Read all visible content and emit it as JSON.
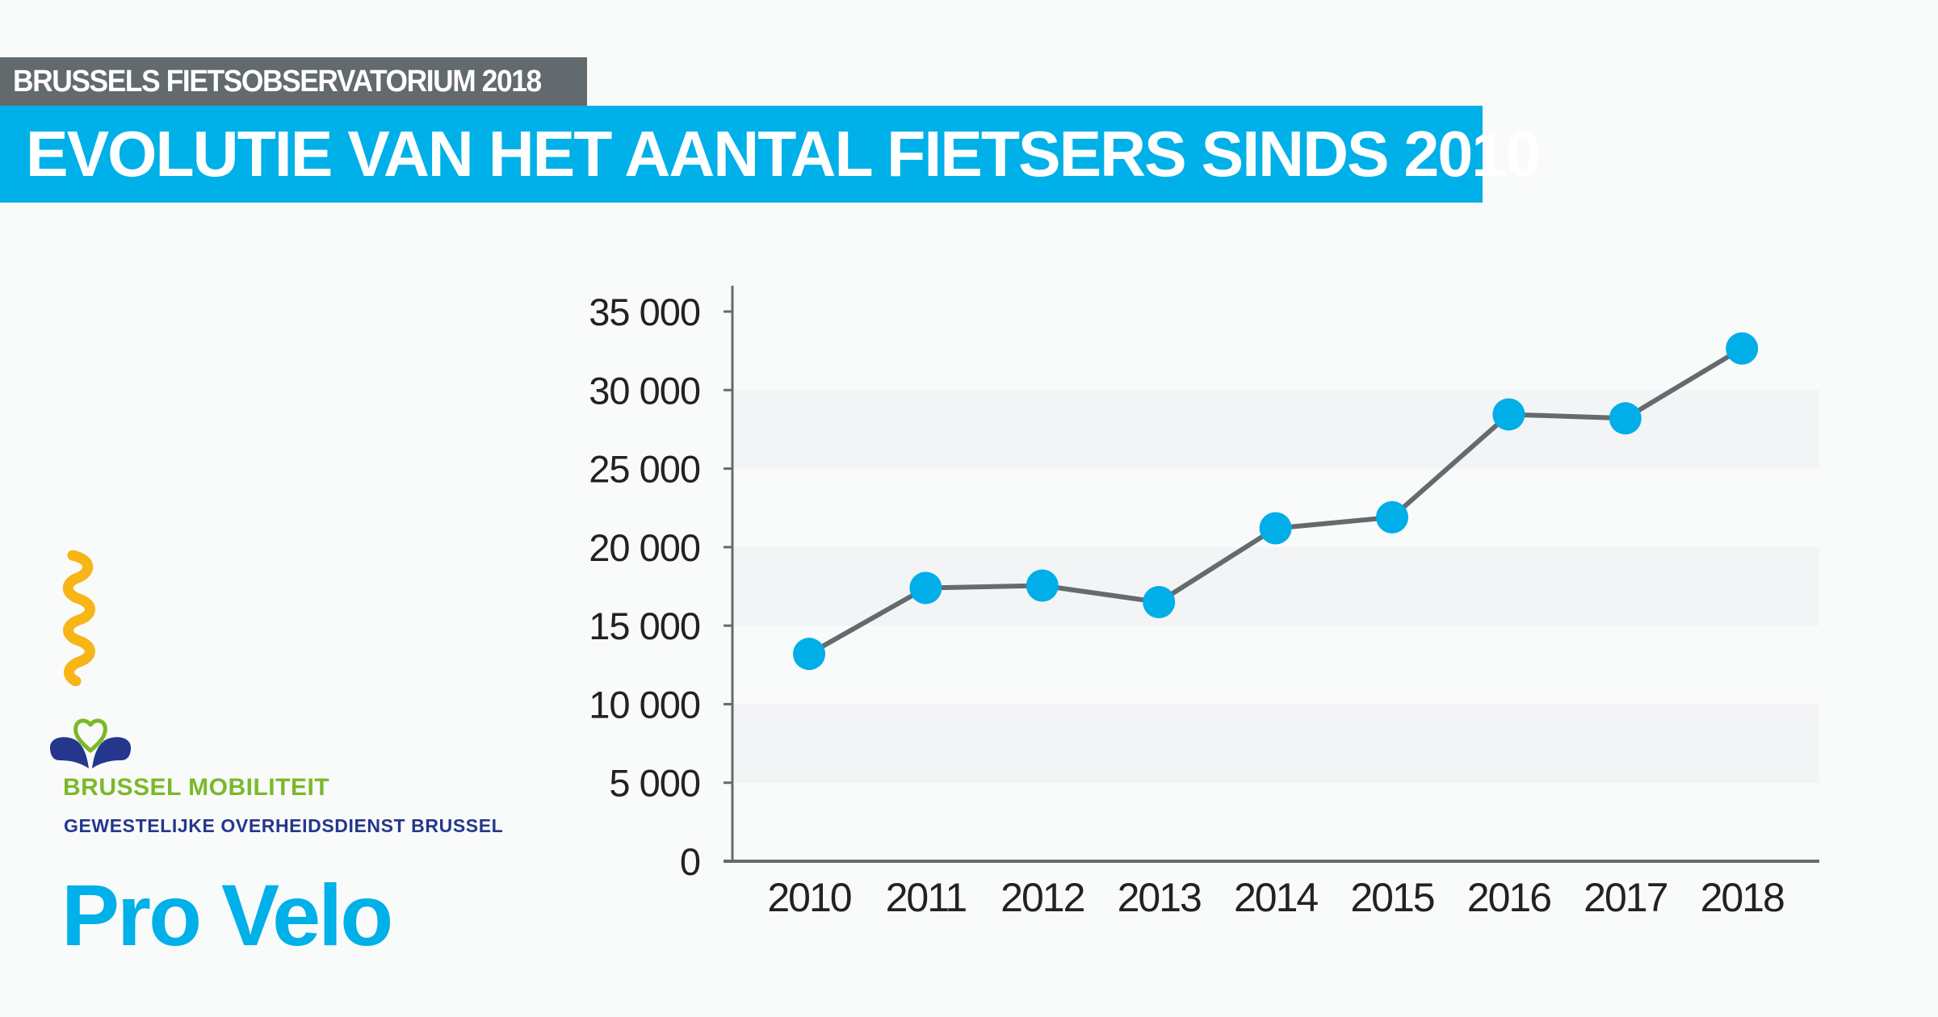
{
  "header": {
    "kicker": "BRUSSELS FIETSOBSERVATORIUM 2018",
    "title": "EVOLUTIE VAN HET AANTAL FIETSERS SINDS 2010"
  },
  "colors": {
    "accent": "#00b0e8",
    "kicker_bg": "#626a6e",
    "line": "#646b6f",
    "marker": "#00aee8",
    "band": "#f3f4f6",
    "green": "#7ab929",
    "navy": "#24378c",
    "yellow": "#f7b516"
  },
  "chart_data": {
    "type": "line",
    "title": "EVOLUTIE VAN HET AANTAL FIETSERS SINDS 2010",
    "xlabel": "",
    "ylabel": "",
    "categories": [
      "2010",
      "2011",
      "2012",
      "2013",
      "2014",
      "2015",
      "2016",
      "2017",
      "2018"
    ],
    "series": [
      {
        "name": "Aantal fietsers",
        "values": [
          13200,
          17400,
          17550,
          16500,
          21200,
          21900,
          28450,
          28200,
          32650
        ]
      }
    ],
    "ylim": [
      0,
      35000
    ],
    "yticks": [
      0,
      5000,
      10000,
      15000,
      20000,
      25000,
      30000,
      35000
    ],
    "ytick_labels": [
      "0",
      "5 000",
      "10 000",
      "15 000",
      "20 000",
      "25 000",
      "30 000",
      "35 000"
    ],
    "alternating_bands": [
      [
        5000,
        10000
      ],
      [
        15000,
        20000
      ],
      [
        25000,
        30000
      ]
    ],
    "grid": false,
    "legend": "none"
  },
  "logos": {
    "brussel_mobiliteit": "BRUSSEL MOBILITEIT",
    "gob": "GEWESTELIJKE OVERHEIDSDIENST BRUSSEL",
    "pro_velo": "Pro Velo"
  }
}
